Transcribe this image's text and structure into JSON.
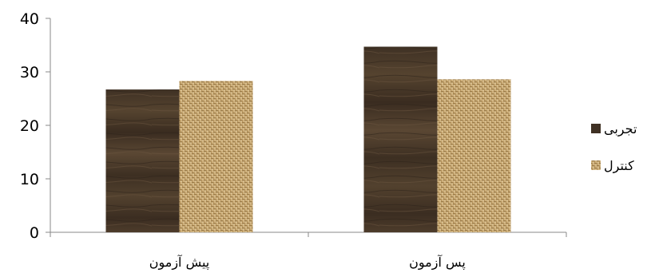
{
  "chart_data": {
    "type": "bar",
    "categories": [
      "پیش آزمون",
      "پس آزمون"
    ],
    "series": [
      {
        "name": "تجربی",
        "values": [
          26.7,
          34.7
        ],
        "color": "#4a3b2c",
        "pattern": "dark-wood"
      },
      {
        "name": "کنترل",
        "values": [
          28.3,
          28.6
        ],
        "color": "#c9aa74",
        "pattern": "burlap"
      }
    ],
    "ylim": [
      0,
      40
    ],
    "yticks": [
      0,
      10,
      20,
      30,
      40
    ],
    "title": "",
    "xlabel": "",
    "ylabel": "",
    "grid": false,
    "legend": "right"
  }
}
